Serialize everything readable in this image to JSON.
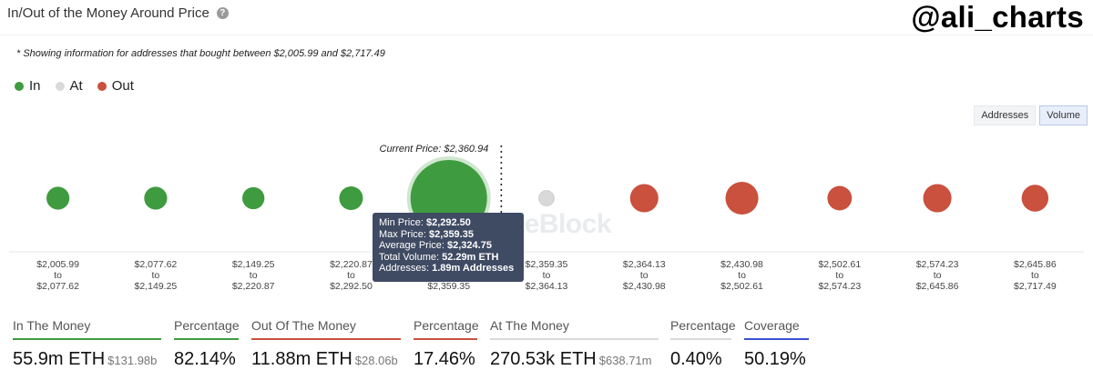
{
  "header": {
    "title": "In/Out of the Money Around Price",
    "help_icon": "question-circle-icon",
    "brand": "@ali_charts"
  },
  "note": "* Showing information for addresses that bought between $2,005.99 and $2,717.49",
  "legend": [
    {
      "label": "In",
      "color": "#3f9b3f"
    },
    {
      "label": "At",
      "color": "#d9d9d9"
    },
    {
      "label": "Out",
      "color": "#c9513e"
    }
  ],
  "toggle": {
    "addresses": "Addresses",
    "volume": "Volume",
    "active": "volume"
  },
  "watermark": "TheBlock",
  "chart_data": {
    "type": "scatter",
    "title": "In/Out of the Money Around Price",
    "current_price_label": "Current Price: $2,360.94",
    "current_price": 2360.94,
    "colors": {
      "in": "#3f9b3f",
      "at": "#d9d9d9",
      "out": "#c9513e"
    },
    "clusters": [
      {
        "from": "$2,005.99",
        "to": "$2,077.62",
        "status": "in",
        "relative_size": 0.3
      },
      {
        "from": "$2,077.62",
        "to": "$2,149.25",
        "status": "in",
        "relative_size": 0.3
      },
      {
        "from": "$2,149.25",
        "to": "$2,220.87",
        "status": "in",
        "relative_size": 0.29
      },
      {
        "from": "$2,220.87",
        "to": "$2,292.50",
        "status": "in",
        "relative_size": 0.31
      },
      {
        "from": "$2,292.50",
        "to": "$2,359.35",
        "status": "in",
        "relative_size": 1.0,
        "highlighted": true
      },
      {
        "from": "$2,359.35",
        "to": "$2,364.13",
        "status": "at",
        "relative_size": 0.2
      },
      {
        "from": "$2,364.13",
        "to": "$2,430.98",
        "status": "out",
        "relative_size": 0.37
      },
      {
        "from": "$2,430.98",
        "to": "$2,502.61",
        "status": "out",
        "relative_size": 0.43
      },
      {
        "from": "$2,502.61",
        "to": "$2,574.23",
        "status": "out",
        "relative_size": 0.32
      },
      {
        "from": "$2,574.23",
        "to": "$2,645.86",
        "status": "out",
        "relative_size": 0.37
      },
      {
        "from": "$2,645.86",
        "to": "$2,717.49",
        "status": "out",
        "relative_size": 0.35
      }
    ],
    "range_connector": "to",
    "tooltip": {
      "min_price": {
        "label": "Min Price:",
        "value": "$2,292.50"
      },
      "max_price": {
        "label": "Max Price:",
        "value": "$2,359.35"
      },
      "avg_price": {
        "label": "Average Price:",
        "value": "$2,324.75"
      },
      "volume": {
        "label": "Total Volume:",
        "value": "52.29m ETH"
      },
      "addresses": {
        "label": "Addresses:",
        "value": "1.89m Addresses"
      }
    }
  },
  "stats": [
    {
      "label": "In The Money",
      "value": "55.9m ETH",
      "sub": "$131.98b",
      "bar_color": "#3f9b3f"
    },
    {
      "label": "Percentage",
      "value": "82.14%",
      "sub": "",
      "bar_color": "#3f9b3f"
    },
    {
      "label": "Out Of The Money",
      "value": "11.88m ETH",
      "sub": "$28.06b",
      "bar_color": "#c9513e"
    },
    {
      "label": "Percentage",
      "value": "17.46%",
      "sub": "",
      "bar_color": "#c9513e"
    },
    {
      "label": "At The Money",
      "value": "270.53k ETH",
      "sub": "$638.71m",
      "bar_color": "#d9d9d9"
    },
    {
      "label": "Percentage",
      "value": "0.40%",
      "sub": "",
      "bar_color": "#d9d9d9"
    },
    {
      "label": "Coverage",
      "value": "50.19%",
      "sub": "",
      "bar_color": "#3b4fd6"
    }
  ]
}
